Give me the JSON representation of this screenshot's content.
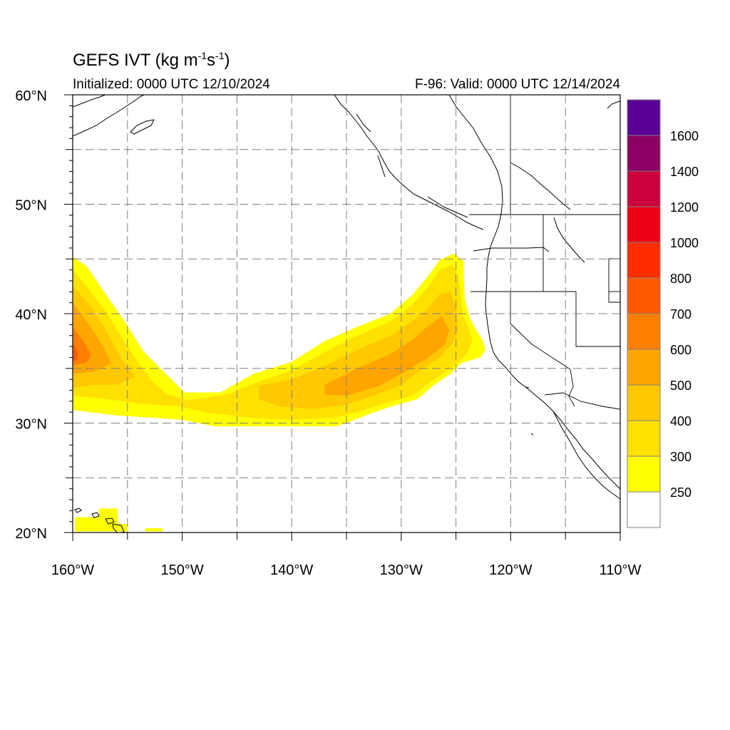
{
  "header": {
    "title_prefix": "GEFS IVT (kg m",
    "title_exp1": "-1",
    "title_mid": "s",
    "title_exp2": "-1",
    "title_suffix": ")",
    "initialized": "Initialized: 0000 UTC 12/10/2024",
    "valid": "F-96: Valid: 0000 UTC 12/14/2024"
  },
  "map": {
    "lon_range": [
      -160,
      -110
    ],
    "lat_range": [
      20,
      60
    ],
    "lat_labels": [
      {
        "lat": 60,
        "text": "60°N"
      },
      {
        "lat": 50,
        "text": "50°N"
      },
      {
        "lat": 40,
        "text": "40°N"
      },
      {
        "lat": 30,
        "text": "30°N"
      },
      {
        "lat": 20,
        "text": "20°N"
      }
    ],
    "lon_labels": [
      {
        "lon": -160,
        "text": "160°W"
      },
      {
        "lon": -150,
        "text": "150°W"
      },
      {
        "lon": -140,
        "text": "140°W"
      },
      {
        "lon": -130,
        "text": "130°W"
      },
      {
        "lon": -120,
        "text": "120°W"
      },
      {
        "lon": -110,
        "text": "110°W"
      }
    ],
    "grid_lons": [
      -155,
      -150,
      -145,
      -140,
      -135,
      -130,
      -125,
      -120,
      -115
    ],
    "grid_lats": [
      55,
      50,
      45,
      40,
      35,
      30,
      25
    ],
    "grid": "dashed"
  },
  "colorbar": {
    "levels": [
      {
        "label": "",
        "color": "#ffffff"
      },
      {
        "label": "250",
        "color": "#ffff00"
      },
      {
        "label": "300",
        "color": "#ffe100"
      },
      {
        "label": "400",
        "color": "#ffc800"
      },
      {
        "label": "500",
        "color": "#ffa500"
      },
      {
        "label": "600",
        "color": "#ff8000"
      },
      {
        "label": "700",
        "color": "#ff5a00"
      },
      {
        "label": "800",
        "color": "#ff2d00"
      },
      {
        "label": "1000",
        "color": "#ee0014"
      },
      {
        "label": "1200",
        "color": "#cc003c"
      },
      {
        "label": "1400",
        "color": "#8c0064"
      },
      {
        "label": "1600",
        "color": "#5a0096"
      }
    ]
  },
  "ivt_field": {
    "units": "kg m-1 s-1",
    "regions": [
      {
        "level": 250,
        "color": "#ffff00",
        "polygon_lonlat": [
          [
            -160,
            45.2
          ],
          [
            -158.7,
            44.3
          ],
          [
            -156.8,
            41.5
          ],
          [
            -155.2,
            39.2
          ],
          [
            -153.5,
            36.5
          ],
          [
            -151.5,
            34.5
          ],
          [
            -149.8,
            32.8
          ],
          [
            -146.5,
            32.8
          ],
          [
            -143.5,
            34.5
          ],
          [
            -140,
            35.6
          ],
          [
            -137,
            37.5
          ],
          [
            -134,
            38.8
          ],
          [
            -131,
            40
          ],
          [
            -129,
            41.7
          ],
          [
            -127.5,
            43.5
          ],
          [
            -126.5,
            44.9
          ],
          [
            -125.2,
            45.5
          ],
          [
            -124.3,
            44.8
          ],
          [
            -124.3,
            43.5
          ],
          [
            -124.2,
            41.4
          ],
          [
            -123.7,
            39.5
          ],
          [
            -123.2,
            38.6
          ],
          [
            -122.6,
            37.6
          ],
          [
            -122.3,
            36.7
          ],
          [
            -122.8,
            36
          ],
          [
            -124.5,
            35.5
          ],
          [
            -125.5,
            34.5
          ],
          [
            -127,
            33.5
          ],
          [
            -128.5,
            32.2
          ],
          [
            -131,
            31.5
          ],
          [
            -133,
            30.8
          ],
          [
            -135,
            30
          ],
          [
            -136,
            29.7
          ],
          [
            -147,
            29.7
          ],
          [
            -150,
            30.3
          ],
          [
            -156,
            30.7
          ],
          [
            -160,
            31.2
          ]
        ]
      },
      {
        "level": 300,
        "color": "#ffe100",
        "polygon_lonlat": [
          [
            -160,
            44
          ],
          [
            -158.5,
            42.2
          ],
          [
            -157,
            40.2
          ],
          [
            -155.5,
            37.8
          ],
          [
            -154,
            35.5
          ],
          [
            -152.7,
            33.8
          ],
          [
            -151.5,
            32.7
          ],
          [
            -149.5,
            32.1
          ],
          [
            -146,
            32.6
          ],
          [
            -143,
            33.8
          ],
          [
            -140,
            34.8
          ],
          [
            -137,
            36.5
          ],
          [
            -134,
            38
          ],
          [
            -131,
            39.3
          ],
          [
            -129,
            40.8
          ],
          [
            -127.5,
            42.5
          ],
          [
            -126.5,
            44
          ],
          [
            -125.3,
            44.5
          ],
          [
            -124.8,
            43.5
          ],
          [
            -124.6,
            42
          ],
          [
            -124.4,
            40
          ],
          [
            -123.8,
            38.6
          ],
          [
            -123.5,
            37.5
          ],
          [
            -124,
            36.3
          ],
          [
            -125.5,
            35
          ],
          [
            -127,
            34
          ],
          [
            -129,
            32.5
          ],
          [
            -131.5,
            31.8
          ],
          [
            -134,
            31
          ],
          [
            -136,
            30.5
          ],
          [
            -140,
            30.3
          ],
          [
            -144,
            30.5
          ],
          [
            -148,
            31
          ],
          [
            -150,
            31.5
          ],
          [
            -154,
            31.8
          ],
          [
            -157,
            32.2
          ],
          [
            -160,
            32.5
          ]
        ]
      },
      {
        "level": 400,
        "color": "#ffc800",
        "polygon_lonlat": [
          [
            -160,
            42.5
          ],
          [
            -158.3,
            40.7
          ],
          [
            -156.8,
            38.2
          ],
          [
            -155.5,
            35.8
          ],
          [
            -154.3,
            34.2
          ],
          [
            -156,
            33.5
          ],
          [
            -158,
            33.5
          ],
          [
            -160,
            33.2
          ]
        ]
      },
      {
        "level": 400,
        "color": "#ffc800",
        "polygon_lonlat": [
          [
            -143,
            33.4
          ],
          [
            -140,
            34
          ],
          [
            -137,
            35.2
          ],
          [
            -134,
            36.7
          ],
          [
            -131,
            38
          ],
          [
            -129,
            39.3
          ],
          [
            -127.5,
            40.5
          ],
          [
            -126.5,
            41.8
          ],
          [
            -125.5,
            42
          ],
          [
            -125,
            40.5
          ],
          [
            -124.8,
            38.6
          ],
          [
            -125.3,
            37.3
          ],
          [
            -126.5,
            36
          ],
          [
            -128,
            35
          ],
          [
            -130,
            33.5
          ],
          [
            -132.5,
            32.5
          ],
          [
            -135,
            31.7
          ],
          [
            -138,
            31.3
          ],
          [
            -141,
            31.5
          ],
          [
            -143,
            32.2
          ]
        ]
      },
      {
        "level": 500,
        "color": "#ffa500",
        "polygon_lonlat": [
          [
            -160,
            41
          ],
          [
            -158.5,
            39
          ],
          [
            -157.2,
            37
          ],
          [
            -156.5,
            35.5
          ],
          [
            -158,
            34.7
          ],
          [
            -160,
            34.5
          ]
        ]
      },
      {
        "level": 500,
        "color": "#ffa500",
        "polygon_lonlat": [
          [
            -137,
            33.5
          ],
          [
            -134,
            35
          ],
          [
            -131,
            36.3
          ],
          [
            -129,
            37.6
          ],
          [
            -127.5,
            38.9
          ],
          [
            -126.3,
            39.8
          ],
          [
            -125.6,
            38.5
          ],
          [
            -126,
            37.2
          ],
          [
            -127.5,
            36
          ],
          [
            -129.5,
            34.8
          ],
          [
            -132,
            33.4
          ],
          [
            -135,
            32.5
          ],
          [
            -137,
            32.6
          ]
        ]
      },
      {
        "level": 600,
        "color": "#ff8000",
        "polygon_lonlat": [
          [
            -160,
            38.8
          ],
          [
            -159,
            37.5
          ],
          [
            -158.3,
            36.2
          ],
          [
            -158.8,
            35.5
          ],
          [
            -160,
            35.3
          ]
        ]
      },
      {
        "level": 700,
        "color": "#ff5a00",
        "polygon_lonlat": [
          [
            -160,
            37.3
          ],
          [
            -159.5,
            36.5
          ],
          [
            -159.6,
            35.8
          ],
          [
            -160,
            35.6
          ]
        ]
      },
      {
        "level": 250,
        "color": "#ffff00",
        "polygon_lonlat": [
          [
            -159.8,
            21.4
          ],
          [
            -157.6,
            21.4
          ],
          [
            -157.6,
            22.2
          ],
          [
            -155.9,
            22.2
          ],
          [
            -155.9,
            20.8
          ],
          [
            -155,
            20.8
          ],
          [
            -155,
            20.1
          ],
          [
            -159.8,
            20.1
          ]
        ]
      },
      {
        "level": 250,
        "color": "#ffff00",
        "polygon_lonlat": [
          [
            -153.4,
            20.4
          ],
          [
            -151.8,
            20.4
          ],
          [
            -151.8,
            20.1
          ],
          [
            -153.4,
            20.1
          ]
        ]
      }
    ]
  }
}
